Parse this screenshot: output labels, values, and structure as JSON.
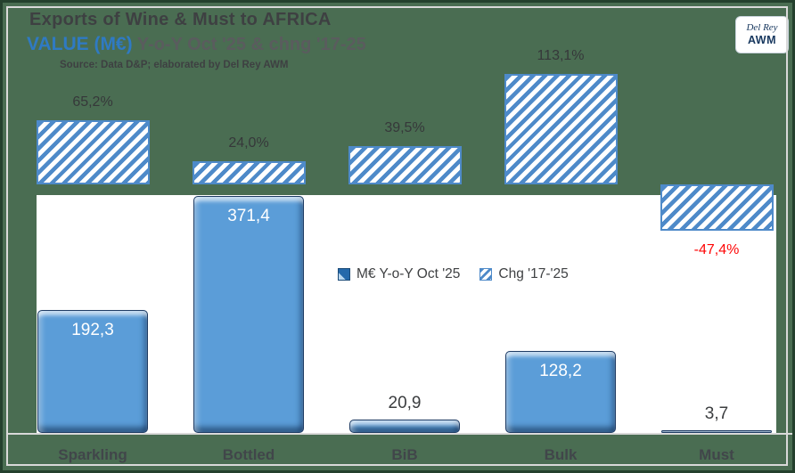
{
  "header": {
    "title": "Exports of Wine & Must to AFRICA",
    "subtitle_value": "VALUE (M€)",
    "subtitle_rest": " Y-o-Y Oct '25 & chng '17-25",
    "source": "Source: Data D&P; elaborated by Del Rey AWM"
  },
  "logo": {
    "line1": "Del Rey",
    "line2": "AWM"
  },
  "legend": {
    "entries": [
      {
        "label": "M€ Y-o-Y Oct '25",
        "marker": "dark-blue-beveled-square"
      },
      {
        "label": "Chg '17-'25",
        "marker": "blue-hatched-square"
      }
    ]
  },
  "chart_data": {
    "type": "bar",
    "title": "Exports of Wine & Must to AFRICA — VALUE (M€) Y-o-Y Oct '25 & chng '17-25",
    "categories": [
      "Sparkling",
      "Bottled",
      "BiB",
      "Bulk",
      "Must"
    ],
    "series": [
      {
        "name": "M€ Y-o-Y Oct '25",
        "axis": "primary",
        "style": "solid-blue-beveled",
        "values": [
          192.3,
          371.4,
          20.9,
          128.2,
          3.7
        ],
        "labels": [
          "192,3",
          "371,4",
          "20,9",
          "128,2",
          "3,7"
        ]
      },
      {
        "name": "Chg '17-'25",
        "axis": "secondary",
        "style": "blue-hatched",
        "values": [
          65.2,
          24.0,
          39.5,
          113.1,
          -47.4
        ],
        "labels": [
          "65,2%",
          "24,0%",
          "39,5%",
          "113,1%",
          "-47,4%"
        ]
      }
    ],
    "value_unit": "M€",
    "change_unit": "%",
    "grid": false,
    "legend_position": "middle-right-of-plot",
    "negative_label_color": "#fe0606"
  },
  "colors": {
    "background_green": "#4a6d52",
    "border_green": "#24402d",
    "frame_gray": "#d9d9d9",
    "bar_blue": "#5b9dd8",
    "hatch_blue": "#4e8ac9",
    "accent_blue_title": "#2f7ac3",
    "negative_red": "#fe0606",
    "label_dark": "#3b3d3f",
    "white": "#ffffff"
  }
}
